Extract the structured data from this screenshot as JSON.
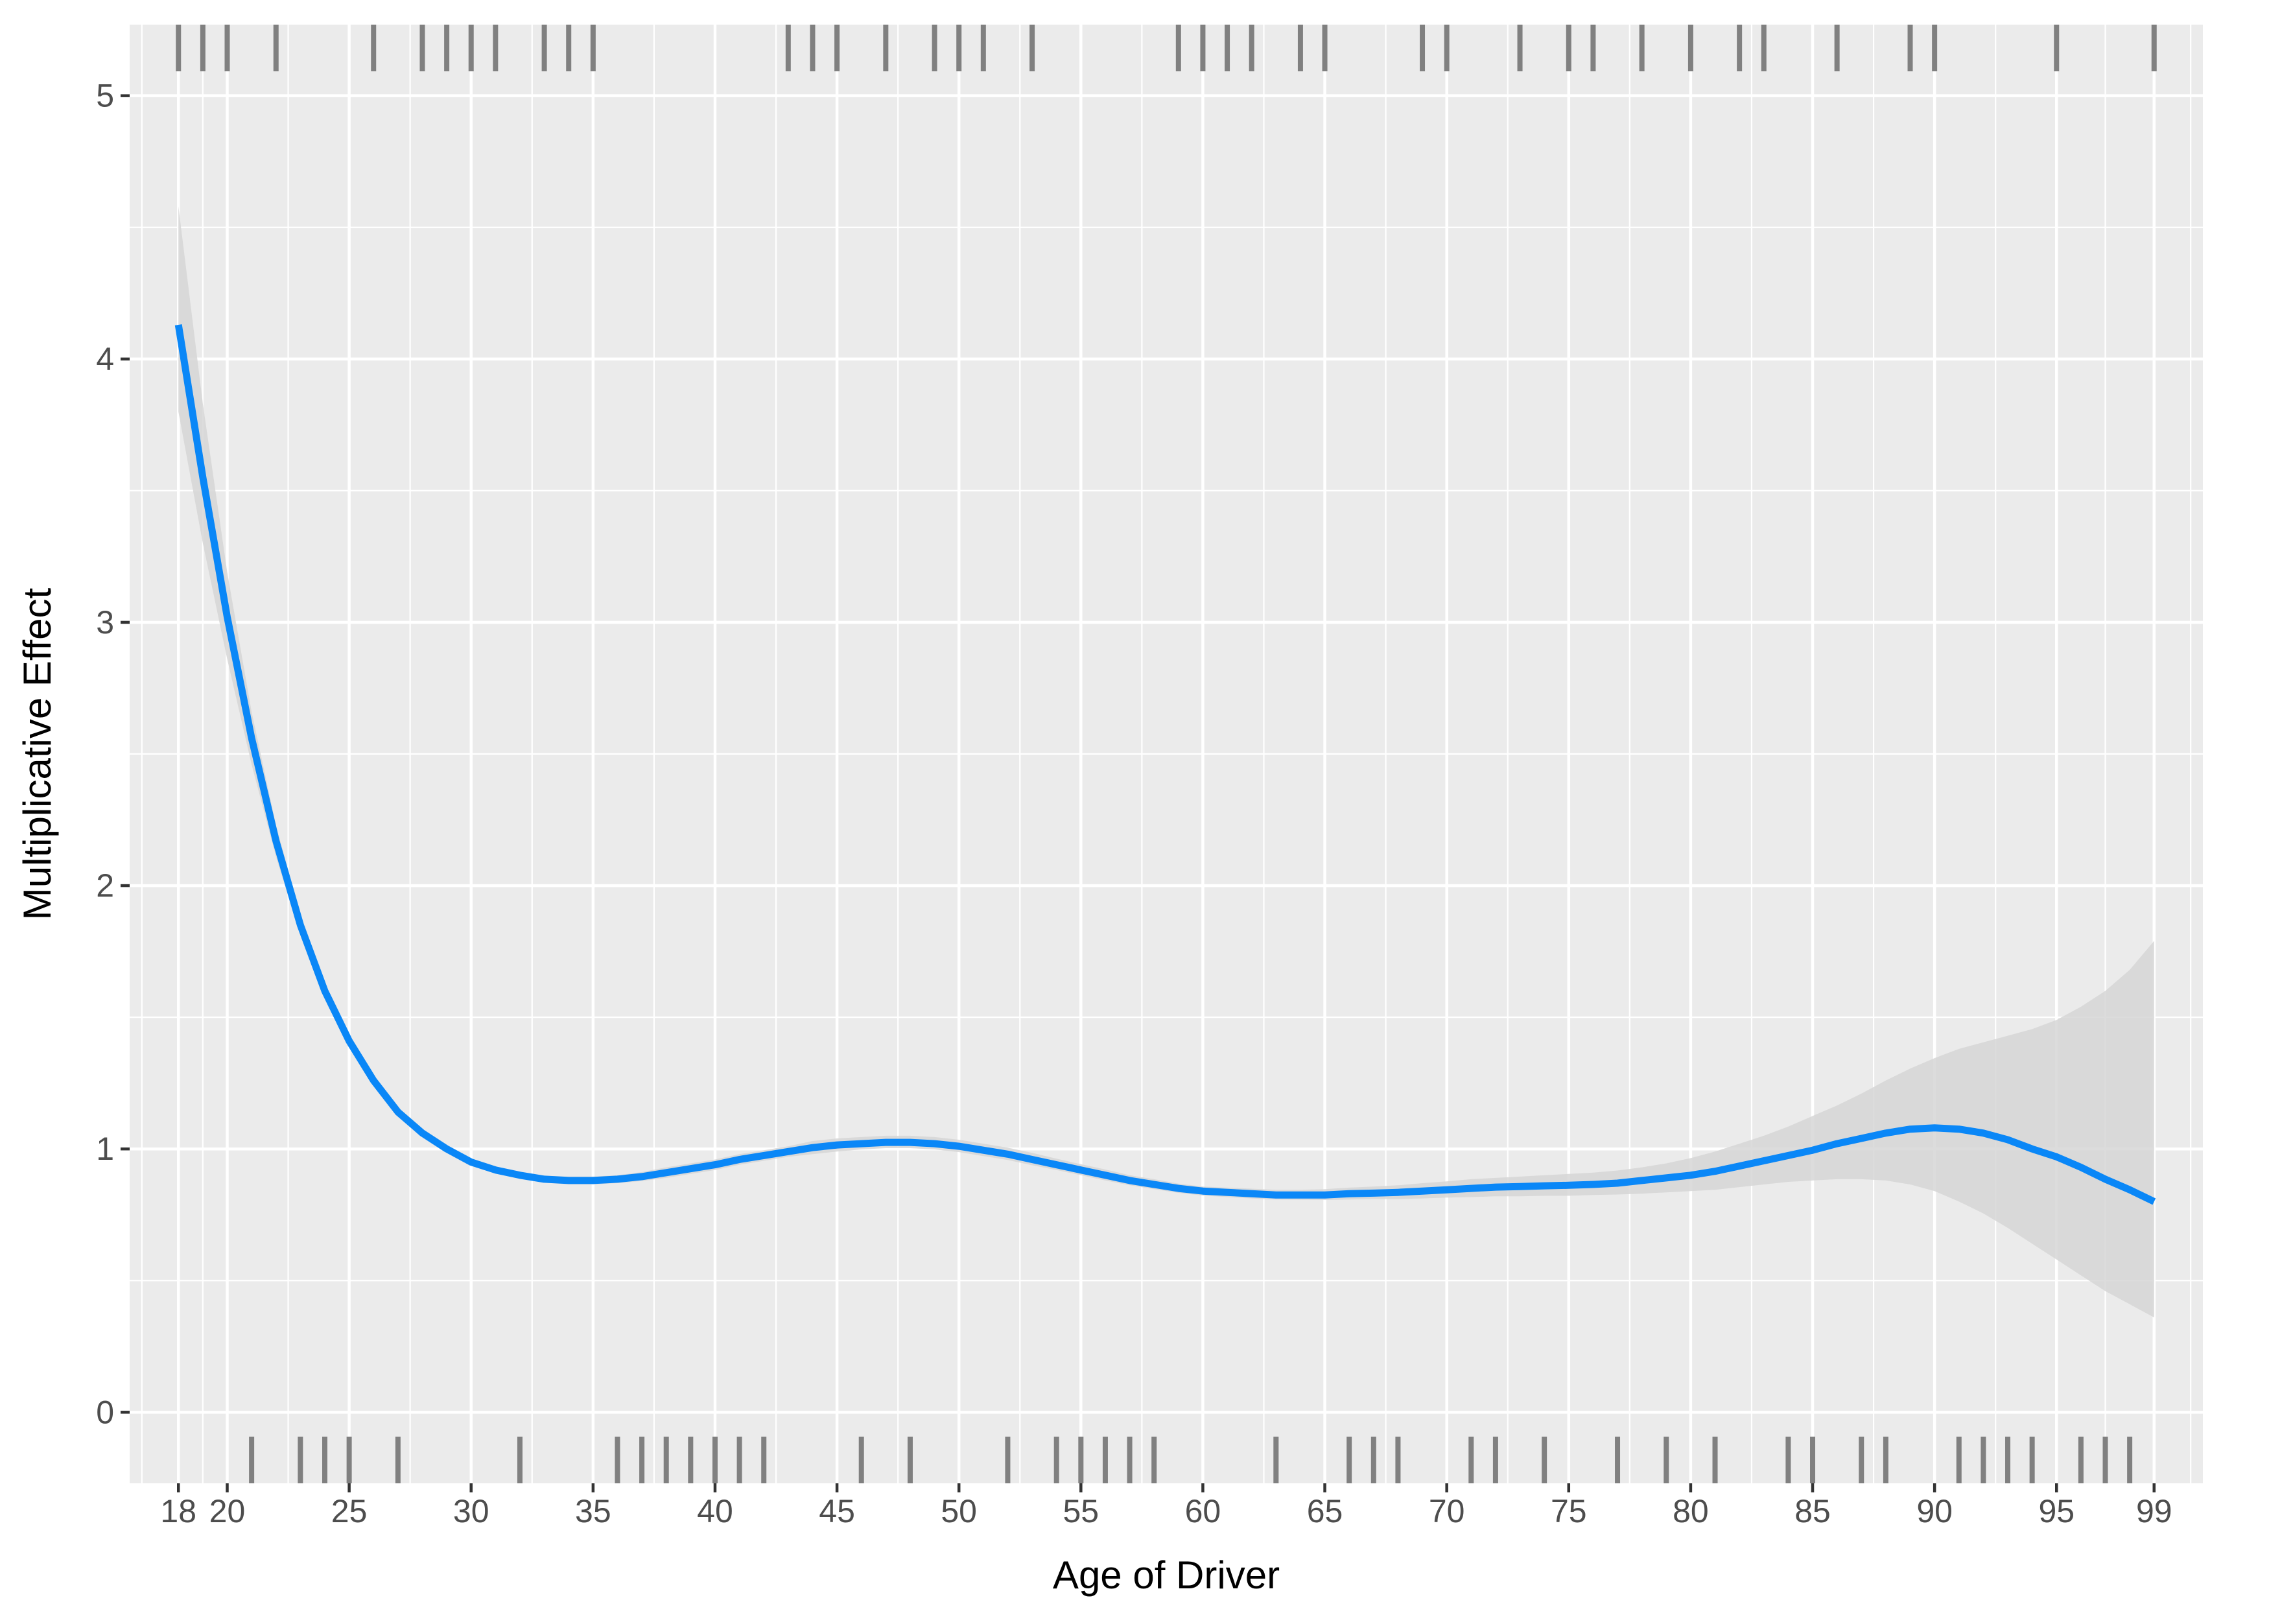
{
  "chart_data": {
    "type": "line",
    "title": "",
    "xlabel": "Age of Driver",
    "ylabel": "Multiplicative Effect",
    "xlim": [
      16,
      101
    ],
    "ylim": [
      -0.27,
      5.27
    ],
    "x_ticks": [
      18,
      20,
      25,
      30,
      35,
      40,
      45,
      50,
      55,
      60,
      65,
      70,
      75,
      80,
      85,
      90,
      95,
      99
    ],
    "x_tick_labels": [
      "18",
      "20",
      "25",
      "30",
      "35",
      "40",
      "45",
      "50",
      "55",
      "60",
      "65",
      "70",
      "75",
      "80",
      "85",
      "90",
      "95",
      "99"
    ],
    "y_ticks": [
      0,
      1,
      2,
      3,
      4,
      5
    ],
    "y_tick_labels": [
      "0",
      "1",
      "2",
      "3",
      "4",
      "5"
    ],
    "grid": true,
    "legend": "none",
    "colors": {
      "panel_background": "#ebebeb",
      "grid": "#ffffff",
      "line": "#0a87f7",
      "ribbon": "#d6d6d6",
      "rug": "#808080",
      "tick_text": "#4d4d4d",
      "axis_title": "#000000"
    },
    "series": [
      {
        "x": [
          18,
          19,
          20,
          21,
          22,
          23,
          24,
          25,
          26,
          27,
          28,
          29,
          30,
          31,
          32,
          33,
          34,
          35,
          36,
          37,
          38,
          39,
          40,
          41,
          42,
          43,
          44,
          45,
          46,
          47,
          48,
          49,
          50,
          51,
          52,
          53,
          54,
          55,
          56,
          57,
          58,
          59,
          60,
          61,
          62,
          63,
          64,
          65,
          66,
          67,
          68,
          69,
          70,
          71,
          72,
          73,
          74,
          75,
          76,
          77,
          78,
          79,
          80,
          81,
          82,
          83,
          84,
          85,
          86,
          87,
          88,
          89,
          90,
          91,
          92,
          93,
          94,
          95,
          96,
          97,
          98,
          99
        ],
        "y": [
          4.13,
          3.55,
          3.02,
          2.56,
          2.17,
          1.85,
          1.6,
          1.41,
          1.26,
          1.14,
          1.06,
          1.0,
          0.95,
          0.92,
          0.9,
          0.885,
          0.88,
          0.88,
          0.885,
          0.895,
          0.91,
          0.925,
          0.94,
          0.96,
          0.975,
          0.99,
          1.005,
          1.015,
          1.02,
          1.025,
          1.025,
          1.02,
          1.01,
          0.995,
          0.98,
          0.96,
          0.94,
          0.92,
          0.9,
          0.88,
          0.865,
          0.85,
          0.84,
          0.835,
          0.83,
          0.825,
          0.825,
          0.825,
          0.83,
          0.832,
          0.835,
          0.84,
          0.845,
          0.85,
          0.855,
          0.857,
          0.86,
          0.862,
          0.865,
          0.87,
          0.88,
          0.89,
          0.9,
          0.915,
          0.935,
          0.955,
          0.975,
          0.995,
          1.02,
          1.04,
          1.06,
          1.075,
          1.08,
          1.075,
          1.06,
          1.035,
          1.0,
          0.97,
          0.93,
          0.885,
          0.845,
          0.8
        ],
        "ci_lower": [
          3.8,
          3.3,
          2.86,
          2.46,
          2.11,
          1.81,
          1.57,
          1.39,
          1.245,
          1.13,
          1.05,
          0.99,
          0.94,
          0.91,
          0.888,
          0.872,
          0.865,
          0.865,
          0.87,
          0.878,
          0.89,
          0.905,
          0.92,
          0.94,
          0.955,
          0.97,
          0.98,
          0.99,
          0.998,
          1.003,
          1.003,
          0.998,
          0.988,
          0.973,
          0.958,
          0.938,
          0.92,
          0.9,
          0.88,
          0.862,
          0.847,
          0.833,
          0.823,
          0.817,
          0.812,
          0.808,
          0.807,
          0.806,
          0.808,
          0.81,
          0.81,
          0.812,
          0.815,
          0.817,
          0.82,
          0.82,
          0.822,
          0.822,
          0.825,
          0.827,
          0.83,
          0.835,
          0.84,
          0.845,
          0.855,
          0.865,
          0.875,
          0.88,
          0.885,
          0.885,
          0.88,
          0.865,
          0.84,
          0.8,
          0.755,
          0.7,
          0.64,
          0.58,
          0.52,
          0.46,
          0.41,
          0.36
        ],
        "ci_upper": [
          4.58,
          3.83,
          3.19,
          2.66,
          2.23,
          1.89,
          1.63,
          1.43,
          1.275,
          1.15,
          1.07,
          1.01,
          0.96,
          0.93,
          0.912,
          0.898,
          0.895,
          0.895,
          0.9,
          0.912,
          0.93,
          0.945,
          0.96,
          0.98,
          0.995,
          1.01,
          1.03,
          1.04,
          1.045,
          1.05,
          1.05,
          1.045,
          1.035,
          1.02,
          1.005,
          0.985,
          0.963,
          0.942,
          0.922,
          0.9,
          0.885,
          0.868,
          0.857,
          0.853,
          0.849,
          0.845,
          0.845,
          0.847,
          0.853,
          0.857,
          0.862,
          0.87,
          0.877,
          0.885,
          0.89,
          0.895,
          0.9,
          0.905,
          0.91,
          0.918,
          0.93,
          0.945,
          0.965,
          0.99,
          1.02,
          1.05,
          1.085,
          1.125,
          1.165,
          1.21,
          1.26,
          1.305,
          1.345,
          1.38,
          1.405,
          1.43,
          1.455,
          1.49,
          1.54,
          1.6,
          1.68,
          1.79
        ]
      }
    ],
    "rug_top": [
      18,
      19,
      20,
      22,
      26,
      28,
      29,
      30,
      31,
      33,
      34,
      35,
      43,
      44,
      45,
      47,
      49,
      50,
      51,
      53,
      59,
      60,
      61,
      62,
      64,
      65,
      69,
      70,
      73,
      75,
      76,
      78,
      80,
      82,
      83,
      86,
      89,
      90,
      95,
      99
    ],
    "rug_bottom": [
      21,
      23,
      24,
      25,
      27,
      32,
      36,
      37,
      38,
      39,
      40,
      41,
      42,
      46,
      48,
      52,
      54,
      55,
      56,
      57,
      58,
      63,
      66,
      67,
      68,
      71,
      72,
      74,
      77,
      79,
      81,
      84,
      85,
      87,
      88,
      91,
      92,
      93,
      94,
      96,
      97,
      98
    ]
  }
}
